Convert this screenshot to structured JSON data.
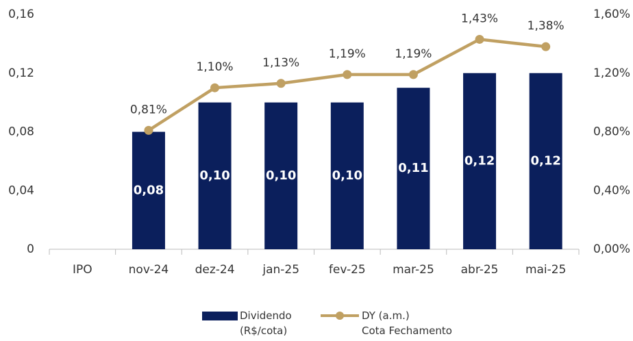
{
  "chart_data": {
    "type": "bar+line",
    "categories": [
      "IPO",
      "nov-24",
      "dez-24",
      "jan-25",
      "fev-25",
      "mar-25",
      "abr-25",
      "mai-25"
    ],
    "series": [
      {
        "name": "Dividendo\n(R$/cota)",
        "type": "bar",
        "color": "#0b1f5c",
        "values": [
          null,
          0.08,
          0.1,
          0.1,
          0.1,
          0.11,
          0.12,
          0.12
        ],
        "value_labels": [
          null,
          "0,08",
          "0,10",
          "0,10",
          "0,10",
          "0,11",
          "0,12",
          "0,12"
        ]
      },
      {
        "name": "DY (a.m.)\nCota Fechamento",
        "type": "line",
        "axis": "y2",
        "color": "#c0a062",
        "values": [
          null,
          0.81,
          1.1,
          1.13,
          1.19,
          1.19,
          1.43,
          1.38
        ],
        "value_labels": [
          null,
          "0,81%",
          "1,10%",
          "1,13%",
          "1,19%",
          "1,19%",
          "1,43%",
          "1,38%"
        ]
      }
    ],
    "ylim": [
      0,
      0.16
    ],
    "yticks": [
      0,
      {
        "value": 0.04,
        "label": "0,04"
      },
      {
        "value": 0.08,
        "label": "0,08"
      },
      {
        "value": 0.12,
        "label": "0,12"
      },
      {
        "value": 0.16,
        "label": "0,16"
      }
    ],
    "y2lim": [
      0,
      1.6
    ],
    "y2ticks": [
      {
        "value": 0,
        "label": "0,00%"
      },
      {
        "value": 0.4,
        "label": "0,40%"
      },
      {
        "value": 0.8,
        "label": "0,80%"
      },
      {
        "value": 1.2,
        "label": "1,20%"
      },
      {
        "value": 1.6,
        "label": "1,60%"
      }
    ],
    "grid": false,
    "legend": "bottom"
  }
}
